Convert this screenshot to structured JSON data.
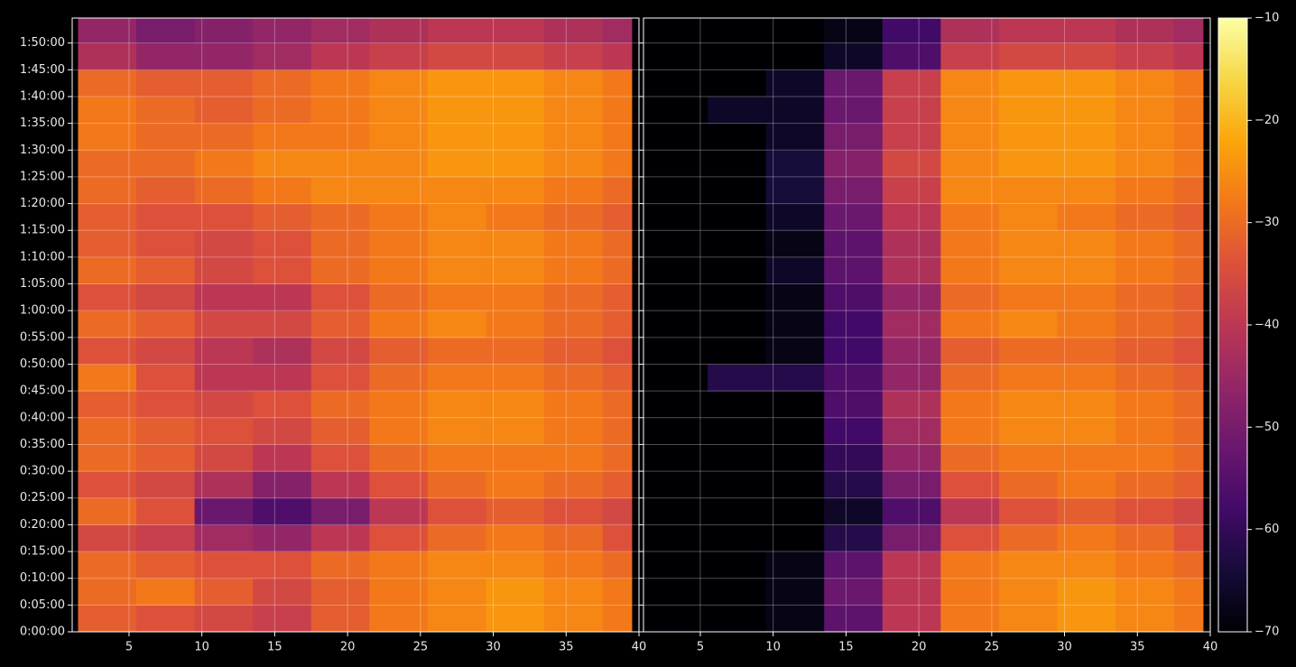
{
  "chart_data": {
    "type": "heatmap",
    "cmap": "inferno",
    "grid": true,
    "xlim": [
      1.1,
      40
    ],
    "xticks": [
      5,
      10,
      15,
      20,
      25,
      30,
      35,
      40
    ],
    "ylim": [
      0,
      6880
    ],
    "yticks": [
      {
        "value": 0,
        "label": "0:00:00"
      },
      {
        "value": 300,
        "label": "0:05:00"
      },
      {
        "value": 600,
        "label": "0:10:00"
      },
      {
        "value": 900,
        "label": "0:15:00"
      },
      {
        "value": 1200,
        "label": "0:20:00"
      },
      {
        "value": 1500,
        "label": "0:25:00"
      },
      {
        "value": 1800,
        "label": "0:30:00"
      },
      {
        "value": 2100,
        "label": "0:35:00"
      },
      {
        "value": 2400,
        "label": "0:40:00"
      },
      {
        "value": 2700,
        "label": "0:45:00"
      },
      {
        "value": 3000,
        "label": "0:50:00"
      },
      {
        "value": 3300,
        "label": "0:55:00"
      },
      {
        "value": 3600,
        "label": "1:00:00"
      },
      {
        "value": 3900,
        "label": "1:05:00"
      },
      {
        "value": 4200,
        "label": "1:10:00"
      },
      {
        "value": 4500,
        "label": "1:15:00"
      },
      {
        "value": 4800,
        "label": "1:20:00"
      },
      {
        "value": 5100,
        "label": "1:25:00"
      },
      {
        "value": 5400,
        "label": "1:30:00"
      },
      {
        "value": 5700,
        "label": "1:35:00"
      },
      {
        "value": 6000,
        "label": "1:40:00"
      },
      {
        "value": 6300,
        "label": "1:45:00"
      },
      {
        "value": 6600,
        "label": "1:50:00"
      }
    ],
    "clim": [
      -70,
      -10
    ],
    "cticks": [
      {
        "value": -70,
        "label": "−70"
      },
      {
        "value": -60,
        "label": "−60"
      },
      {
        "value": -50,
        "label": "−50"
      },
      {
        "value": -40,
        "label": "−40"
      },
      {
        "value": -30,
        "label": "−30"
      },
      {
        "value": -20,
        "label": "−20"
      },
      {
        "value": -10,
        "label": "−10"
      }
    ],
    "xbins": [
      1.5,
      5.5,
      9.5,
      13.5,
      17.5,
      21.5,
      25.5,
      29.5,
      33.5,
      37.5,
      39.5
    ],
    "ybins": [
      0,
      300,
      600,
      900,
      1200,
      1500,
      1800,
      2100,
      2400,
      2700,
      3000,
      3300,
      3600,
      3900,
      4200,
      4500,
      4800,
      5100,
      5400,
      5700,
      6000,
      6300,
      6600,
      6880
    ],
    "panels": [
      {
        "values": [
          [
            -32,
            -34,
            -36,
            -38,
            -32,
            -28,
            -26,
            -24,
            -26,
            -28
          ],
          [
            -30,
            -28,
            -32,
            -36,
            -32,
            -28,
            -26,
            -24,
            -26,
            -28
          ],
          [
            -30,
            -32,
            -34,
            -34,
            -30,
            -28,
            -26,
            -26,
            -28,
            -30
          ],
          [
            -36,
            -38,
            -44,
            -46,
            -40,
            -34,
            -30,
            -28,
            -30,
            -34
          ],
          [
            -30,
            -34,
            -52,
            -56,
            -50,
            -40,
            -34,
            -32,
            -34,
            -36
          ],
          [
            -34,
            -36,
            -42,
            -48,
            -40,
            -34,
            -30,
            -28,
            -30,
            -32
          ],
          [
            -30,
            -32,
            -36,
            -40,
            -34,
            -30,
            -28,
            -28,
            -28,
            -30
          ],
          [
            -30,
            -32,
            -34,
            -36,
            -32,
            -28,
            -26,
            -26,
            -28,
            -30
          ],
          [
            -32,
            -34,
            -36,
            -34,
            -30,
            -28,
            -26,
            -26,
            -28,
            -30
          ],
          [
            -28,
            -34,
            -40,
            -40,
            -34,
            -30,
            -28,
            -28,
            -30,
            -32
          ],
          [
            -34,
            -36,
            -40,
            -42,
            -36,
            -32,
            -30,
            -30,
            -32,
            -34
          ],
          [
            -30,
            -32,
            -36,
            -36,
            -32,
            -28,
            -26,
            -28,
            -30,
            -32
          ],
          [
            -34,
            -36,
            -40,
            -40,
            -34,
            -30,
            -28,
            -28,
            -30,
            -32
          ],
          [
            -30,
            -32,
            -36,
            -34,
            -30,
            -28,
            -26,
            -26,
            -28,
            -30
          ],
          [
            -32,
            -34,
            -36,
            -34,
            -30,
            -28,
            -26,
            -26,
            -28,
            -30
          ],
          [
            -32,
            -34,
            -34,
            -32,
            -30,
            -28,
            -26,
            -28,
            -30,
            -32
          ],
          [
            -30,
            -32,
            -30,
            -28,
            -26,
            -26,
            -26,
            -26,
            -28,
            -30
          ],
          [
            -30,
            -30,
            -28,
            -26,
            -26,
            -26,
            -24,
            -24,
            -26,
            -28
          ],
          [
            -28,
            -30,
            -30,
            -28,
            -28,
            -26,
            -24,
            -24,
            -26,
            -28
          ],
          [
            -28,
            -30,
            -32,
            -30,
            -28,
            -26,
            -24,
            -24,
            -26,
            -28
          ],
          [
            -30,
            -32,
            -32,
            -30,
            -28,
            -26,
            -24,
            -24,
            -26,
            -28
          ],
          [
            -42,
            -46,
            -46,
            -44,
            -40,
            -38,
            -36,
            -36,
            -38,
            -40
          ],
          [
            -46,
            -50,
            -48,
            -46,
            -44,
            -42,
            -40,
            -40,
            -42,
            -44
          ]
        ]
      },
      {
        "values": [
          [
            -70,
            -70,
            -68,
            -54,
            -40,
            -28,
            -26,
            -24,
            -26,
            -28
          ],
          [
            -70,
            -70,
            -68,
            -52,
            -40,
            -28,
            -26,
            -24,
            -26,
            -28
          ],
          [
            -70,
            -70,
            -68,
            -54,
            -40,
            -28,
            -26,
            -26,
            -28,
            -30
          ],
          [
            -70,
            -70,
            -70,
            -62,
            -50,
            -34,
            -30,
            -28,
            -30,
            -34
          ],
          [
            -70,
            -70,
            -70,
            -66,
            -56,
            -40,
            -34,
            -32,
            -34,
            -36
          ],
          [
            -70,
            -70,
            -70,
            -62,
            -50,
            -34,
            -30,
            -28,
            -30,
            -32
          ],
          [
            -70,
            -70,
            -70,
            -60,
            -46,
            -30,
            -28,
            -28,
            -28,
            -30
          ],
          [
            -70,
            -70,
            -70,
            -58,
            -44,
            -28,
            -26,
            -26,
            -28,
            -30
          ],
          [
            -70,
            -70,
            -70,
            -56,
            -42,
            -28,
            -26,
            -26,
            -28,
            -30
          ],
          [
            -70,
            -62,
            -62,
            -56,
            -46,
            -30,
            -28,
            -28,
            -30,
            -32
          ],
          [
            -70,
            -70,
            -68,
            -58,
            -46,
            -32,
            -30,
            -30,
            -32,
            -34
          ],
          [
            -70,
            -70,
            -68,
            -58,
            -44,
            -28,
            -26,
            -28,
            -30,
            -32
          ],
          [
            -70,
            -70,
            -68,
            -56,
            -46,
            -30,
            -28,
            -28,
            -30,
            -32
          ],
          [
            -70,
            -70,
            -66,
            -54,
            -42,
            -28,
            -26,
            -26,
            -28,
            -30
          ],
          [
            -70,
            -70,
            -68,
            -54,
            -42,
            -28,
            -26,
            -26,
            -28,
            -30
          ],
          [
            -70,
            -70,
            -66,
            -52,
            -40,
            -28,
            -26,
            -28,
            -30,
            -32
          ],
          [
            -70,
            -70,
            -64,
            -50,
            -38,
            -26,
            -26,
            -26,
            -28,
            -30
          ],
          [
            -70,
            -70,
            -64,
            -48,
            -36,
            -26,
            -24,
            -24,
            -26,
            -28
          ],
          [
            -70,
            -70,
            -66,
            -50,
            -38,
            -26,
            -24,
            -24,
            -26,
            -28
          ],
          [
            -70,
            -66,
            -66,
            -52,
            -38,
            -26,
            -24,
            -24,
            -26,
            -28
          ],
          [
            -70,
            -70,
            -66,
            -52,
            -38,
            -26,
            -24,
            -24,
            -26,
            -28
          ],
          [
            -70,
            -70,
            -70,
            -66,
            -56,
            -38,
            -36,
            -36,
            -38,
            -40
          ],
          [
            -70,
            -70,
            -70,
            -68,
            -58,
            -42,
            -40,
            -40,
            -42,
            -44
          ]
        ]
      }
    ]
  }
}
